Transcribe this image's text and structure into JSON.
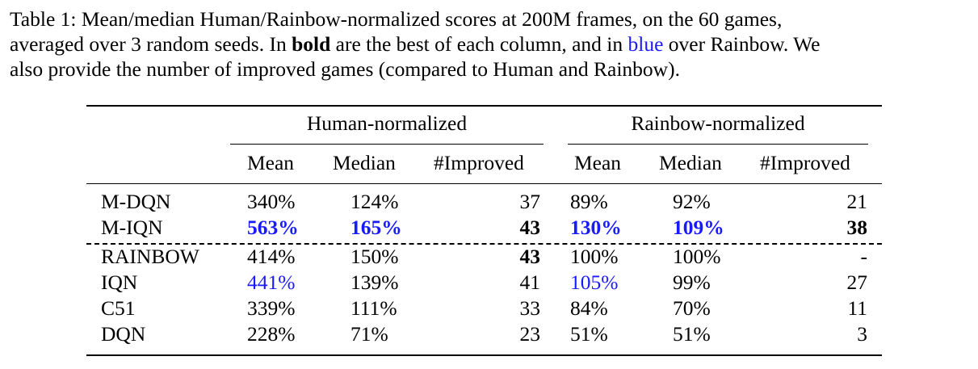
{
  "caption": {
    "line1": "Table 1:  Mean/median Human/Rainbow-normalized scores at 200M frames, on the 60 games,",
    "line2_pre": "averaged over 3 random seeds. In ",
    "line2_bold": "bold",
    "line2_mid": " are the best of each column, and in ",
    "line2_blue": "blue",
    "line2_post": " over Rainbow. We",
    "line3": "also provide the number of improved games (compared to Human and Rainbow)."
  },
  "table": {
    "group_human": "Human-normalized",
    "group_rainbow": "Rainbow-normalized",
    "columns": [
      "Mean",
      "Median",
      "#Improved",
      "Mean",
      "Median",
      "#Improved"
    ],
    "rows": [
      {
        "name": "M-DQN",
        "cells": [
          "340%",
          "124%",
          "37",
          "89%",
          "92%",
          "21"
        ],
        "styles": [
          "",
          "",
          "",
          "",
          "",
          ""
        ]
      },
      {
        "name": "M-IQN",
        "cells": [
          "563%",
          "165%",
          "43",
          "130%",
          "109%",
          "38"
        ],
        "styles": [
          "bold blue",
          "bold blue",
          "bold",
          "bold blue",
          "bold blue",
          "bold"
        ]
      },
      {
        "name": "RAINBOW",
        "cells": [
          "414%",
          "150%",
          "43",
          "100%",
          "100%",
          "-"
        ],
        "styles": [
          "",
          "",
          "bold",
          "",
          "",
          ""
        ]
      },
      {
        "name": "IQN",
        "cells": [
          "441%",
          "139%",
          "41",
          "105%",
          "99%",
          "27"
        ],
        "styles": [
          "blue",
          "",
          "",
          "blue",
          "",
          ""
        ]
      },
      {
        "name": "C51",
        "cells": [
          "339%",
          "111%",
          "33",
          "84%",
          "70%",
          "11"
        ],
        "styles": [
          "",
          "",
          "",
          "",
          "",
          ""
        ]
      },
      {
        "name": "DQN",
        "cells": [
          "228%",
          "71%",
          "23",
          "51%",
          "51%",
          "3"
        ],
        "styles": [
          "",
          "",
          "",
          "",
          "",
          ""
        ]
      }
    ]
  },
  "colors": {
    "highlight_blue": "#1a1aff",
    "text": "#000000"
  }
}
